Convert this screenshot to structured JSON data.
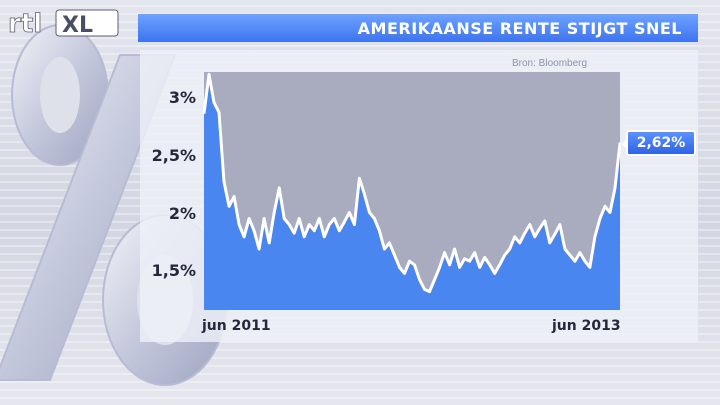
{
  "header": {
    "logo_text": "rtlXL",
    "title": "AMERIKAANSE RENTE STIJGT SNEL",
    "source": "Bron: Bloomberg"
  },
  "colors": {
    "title_bar": "#4a7ff5",
    "area_fill": "#4a86f0",
    "plot_bg": "#a9abbe",
    "line": "#ffffff"
  },
  "chart_data": {
    "type": "area",
    "title": "AMERIKAANSE RENTE STIJGT SNEL",
    "xlabel": "",
    "ylabel": "",
    "x_tick_labels": [
      "jun 2011",
      "jun 2013"
    ],
    "y_tick_labels": [
      "3%",
      "2,5%",
      "2%",
      "1,5%"
    ],
    "y_ticks": [
      3.0,
      2.5,
      2.0,
      1.5
    ],
    "ylim": [
      1.25,
      3.2
    ],
    "grid": false,
    "last_value_label": "2,62%",
    "series": [
      {
        "values": [
          2.86,
          3.18,
          2.95,
          2.87,
          2.3,
          2.1,
          2.18,
          1.95,
          1.85,
          2.0,
          1.9,
          1.75,
          2.0,
          1.8,
          2.05,
          2.25,
          2.0,
          1.95,
          1.88,
          2.0,
          1.85,
          1.95,
          1.9,
          2.0,
          1.85,
          1.95,
          2.0,
          1.9,
          1.97,
          2.05,
          1.95,
          2.33,
          2.2,
          2.05,
          2.0,
          1.9,
          1.75,
          1.8,
          1.7,
          1.6,
          1.55,
          1.65,
          1.62,
          1.5,
          1.42,
          1.4,
          1.5,
          1.6,
          1.72,
          1.62,
          1.75,
          1.6,
          1.67,
          1.65,
          1.72,
          1.6,
          1.68,
          1.62,
          1.55,
          1.62,
          1.7,
          1.75,
          1.85,
          1.8,
          1.88,
          1.95,
          1.85,
          1.92,
          1.98,
          1.8,
          1.87,
          1.95,
          1.75,
          1.7,
          1.65,
          1.72,
          1.65,
          1.6,
          1.85,
          2.0,
          2.1,
          2.05,
          2.25,
          2.62
        ]
      }
    ]
  }
}
